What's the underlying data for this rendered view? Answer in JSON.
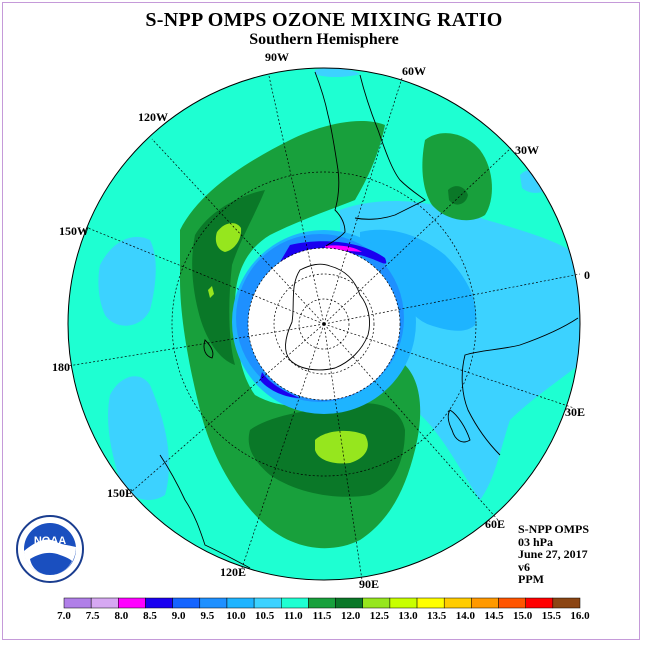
{
  "title": "S-NPP OMPS OZONE MIXING RATIO",
  "subtitle": "Southern Hemisphere",
  "longitude_labels": {
    "lon_90w": "90W",
    "lon_60w": "60W",
    "lon_120w": "120W",
    "lon_30w": "30W",
    "lon_150w": "150W",
    "lon_0": "0",
    "lon_180": "180",
    "lon_30e": "30E",
    "lon_150e": "150E",
    "lon_60e": "60E",
    "lon_120e": "120E",
    "lon_90e": "90E"
  },
  "info": {
    "instrument": "S-NPP OMPS",
    "level": "03 hPa",
    "date": "June 27, 2017",
    "version": "v6",
    "units": "PPM"
  },
  "logo": {
    "text": "NOAA"
  },
  "colorbar": {
    "ticks": [
      "7.0",
      "7.5",
      "8.0",
      "8.5",
      "9.0",
      "9.5",
      "10.0",
      "10.5",
      "11.0",
      "11.5",
      "12.0",
      "12.5",
      "13.0",
      "13.5",
      "14.0",
      "14.5",
      "15.0",
      "15.5",
      "16.0"
    ],
    "colors": [
      "#b07fe8",
      "#d6a8f2",
      "#ff00ff",
      "#1a00f0",
      "#1464ff",
      "#1e90ff",
      "#1eb4ff",
      "#3cd2ff",
      "#1effd2",
      "#18a03c",
      "#0a7828",
      "#96e61e",
      "#c8ff00",
      "#ffff00",
      "#ffcc00",
      "#ff9900",
      "#ff5500",
      "#ff0000",
      "#8b4513"
    ]
  },
  "colors": {
    "background_field": "#1effd2",
    "coastline": "#000000",
    "night": "#ffffff"
  }
}
